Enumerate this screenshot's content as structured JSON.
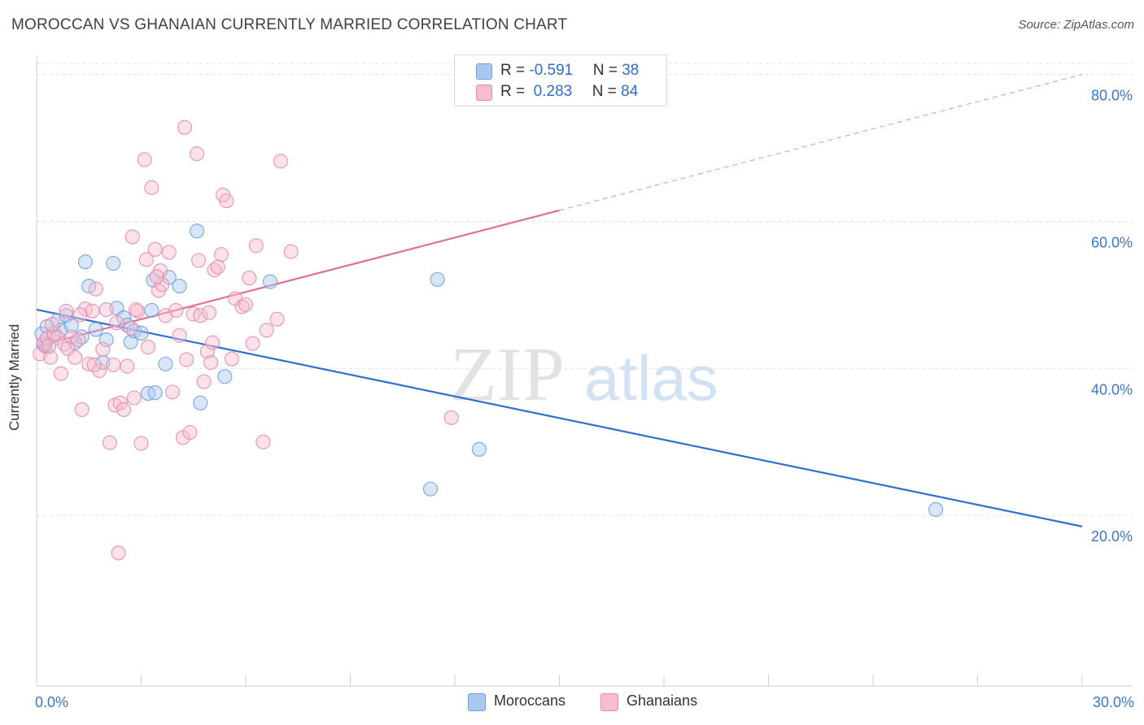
{
  "title": "MOROCCAN VS GHANAIAN CURRENTLY MARRIED CORRELATION CHART",
  "source": "Source: ZipAtlas.com",
  "watermark": {
    "zip": "ZIP",
    "atlas": "atlas"
  },
  "legend": {
    "rows": [
      {
        "r_label": "R = ",
        "r_value": "-0.591",
        "n_label": "N = ",
        "n_value": "38",
        "color": "#a9c8f0",
        "border": "#6a9fe0"
      },
      {
        "r_label": "R = ",
        "r_value": " 0.283",
        "n_label": "N = ",
        "n_value": "84",
        "color": "#f7bcd0",
        "border": "#e98aa8"
      }
    ]
  },
  "bottom_legend": [
    {
      "label": "Moroccans",
      "color": "#a9c8f0",
      "border": "#6a9fe0"
    },
    {
      "label": "Ghanaians",
      "color": "#f7bcd0",
      "border": "#e98aa8"
    }
  ],
  "chart_data": {
    "type": "scatter",
    "title": "MOROCCAN VS GHANAIAN CURRENTLY MARRIED CORRELATION CHART",
    "xlabel": "",
    "ylabel": "Currently Married",
    "xlim": [
      0,
      30
    ],
    "ylim": [
      0,
      84
    ],
    "x_tick_labels": [
      {
        "x": 0,
        "label": "0.0%"
      },
      {
        "x": 30,
        "label": "30.0%"
      }
    ],
    "y_ticks": [
      {
        "y": 20,
        "label": "20.0%"
      },
      {
        "y": 40,
        "label": "40.0%"
      },
      {
        "y": 60,
        "label": "60.0%"
      },
      {
        "y": 80,
        "label": "80.0%"
      }
    ],
    "grid": "horizontal dashed",
    "series": [
      {
        "name": "Moroccans",
        "color": "#6a9fe0",
        "fill": "#a9c8f0",
        "trend": {
          "x0": 0,
          "y0": 48.0,
          "x1": 30,
          "y1": 18.5,
          "dash_after": null
        },
        "points": [
          [
            0.15,
            44.7
          ],
          [
            0.25,
            43.0
          ],
          [
            0.3,
            45.7
          ],
          [
            0.5,
            44.5
          ],
          [
            0.6,
            46.5
          ],
          [
            0.7,
            45.2
          ],
          [
            0.85,
            47.2
          ],
          [
            1.0,
            45.8
          ],
          [
            1.1,
            43.5
          ],
          [
            1.3,
            44.3
          ],
          [
            1.4,
            54.5
          ],
          [
            1.5,
            51.2
          ],
          [
            1.7,
            45.3
          ],
          [
            1.9,
            40.8
          ],
          [
            2.0,
            43.9
          ],
          [
            2.2,
            54.3
          ],
          [
            2.3,
            48.2
          ],
          [
            2.5,
            46.9
          ],
          [
            2.6,
            45.9
          ],
          [
            2.7,
            43.6
          ],
          [
            2.8,
            45.1
          ],
          [
            3.0,
            44.8
          ],
          [
            3.2,
            36.6
          ],
          [
            3.3,
            47.9
          ],
          [
            3.35,
            52.0
          ],
          [
            3.4,
            36.7
          ],
          [
            3.7,
            40.6
          ],
          [
            3.8,
            52.4
          ],
          [
            4.1,
            51.2
          ],
          [
            4.6,
            58.7
          ],
          [
            4.7,
            35.3
          ],
          [
            5.4,
            38.9
          ],
          [
            6.7,
            51.8
          ],
          [
            11.3,
            23.6
          ],
          [
            11.5,
            52.1
          ],
          [
            12.7,
            29.0
          ],
          [
            25.8,
            20.8
          ],
          [
            0.2,
            43.2
          ]
        ]
      },
      {
        "name": "Ghanaians",
        "color": "#e98aa8",
        "fill": "#f7bcd0",
        "trend": {
          "x0": 0,
          "y0": 43.0,
          "x1": 15,
          "y1": 61.5,
          "dash_to_x": 30,
          "dash_to_y": 80.0
        },
        "points": [
          [
            0.1,
            42.0
          ],
          [
            0.2,
            43.5
          ],
          [
            0.3,
            44.1
          ],
          [
            0.4,
            41.5
          ],
          [
            0.5,
            44.8
          ],
          [
            0.6,
            44.2
          ],
          [
            0.7,
            39.3
          ],
          [
            0.8,
            43.3
          ],
          [
            0.85,
            47.8
          ],
          [
            0.9,
            42.7
          ],
          [
            1.0,
            44.3
          ],
          [
            1.1,
            41.5
          ],
          [
            1.2,
            43.9
          ],
          [
            1.3,
            34.4
          ],
          [
            1.4,
            48.1
          ],
          [
            1.5,
            40.6
          ],
          [
            1.6,
            47.8
          ],
          [
            1.7,
            50.8
          ],
          [
            1.8,
            39.7
          ],
          [
            1.9,
            42.6
          ],
          [
            2.0,
            48.0
          ],
          [
            2.1,
            29.9
          ],
          [
            2.2,
            40.5
          ],
          [
            2.25,
            35.0
          ],
          [
            2.3,
            46.2
          ],
          [
            2.4,
            35.3
          ],
          [
            2.5,
            34.4
          ],
          [
            2.6,
            40.3
          ],
          [
            2.7,
            45.5
          ],
          [
            2.75,
            57.9
          ],
          [
            2.8,
            36.0
          ],
          [
            2.9,
            47.8
          ],
          [
            3.0,
            29.8
          ],
          [
            3.1,
            68.4
          ],
          [
            3.15,
            54.8
          ],
          [
            3.2,
            42.9
          ],
          [
            3.3,
            64.6
          ],
          [
            3.4,
            56.2
          ],
          [
            3.5,
            50.6
          ],
          [
            3.55,
            53.3
          ],
          [
            3.6,
            51.4
          ],
          [
            3.7,
            47.2
          ],
          [
            3.8,
            55.8
          ],
          [
            3.9,
            36.8
          ],
          [
            4.0,
            47.9
          ],
          [
            4.1,
            44.5
          ],
          [
            4.2,
            30.6
          ],
          [
            4.25,
            72.8
          ],
          [
            4.3,
            41.2
          ],
          [
            4.4,
            31.3
          ],
          [
            4.5,
            47.4
          ],
          [
            4.6,
            69.2
          ],
          [
            4.65,
            54.7
          ],
          [
            4.7,
            47.2
          ],
          [
            4.8,
            38.2
          ],
          [
            4.9,
            42.3
          ],
          [
            5.0,
            40.8
          ],
          [
            5.1,
            53.4
          ],
          [
            5.2,
            53.8
          ],
          [
            5.3,
            55.5
          ],
          [
            5.35,
            63.6
          ],
          [
            5.45,
            62.8
          ],
          [
            5.6,
            41.3
          ],
          [
            5.7,
            49.5
          ],
          [
            5.9,
            48.4
          ],
          [
            6.0,
            48.7
          ],
          [
            6.1,
            52.3
          ],
          [
            6.2,
            43.4
          ],
          [
            6.3,
            56.7
          ],
          [
            6.5,
            30.0
          ],
          [
            6.6,
            45.2
          ],
          [
            6.9,
            46.7
          ],
          [
            7.0,
            68.2
          ],
          [
            7.3,
            55.9
          ],
          [
            11.9,
            33.3
          ],
          [
            1.65,
            40.5
          ],
          [
            2.35,
            14.9
          ],
          [
            5.05,
            43.5
          ],
          [
            0.45,
            46.0
          ],
          [
            1.25,
            47.3
          ],
          [
            0.35,
            43.0
          ],
          [
            2.85,
            48.0
          ],
          [
            3.45,
            52.5
          ],
          [
            4.95,
            47.6
          ]
        ]
      }
    ]
  }
}
